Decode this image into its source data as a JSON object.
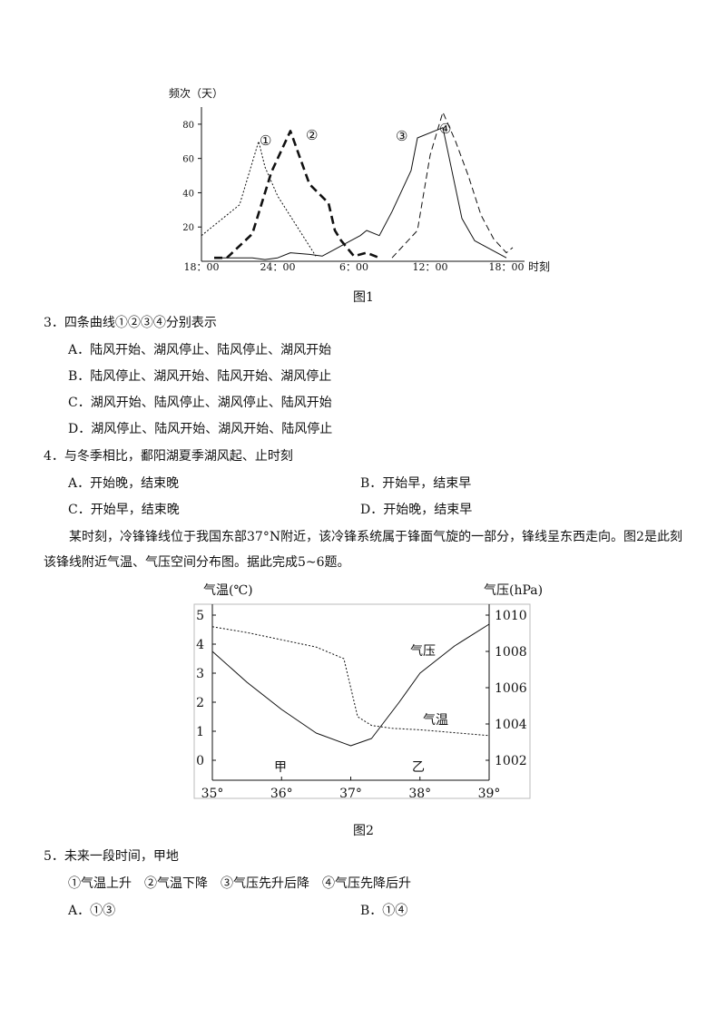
{
  "figure1": {
    "caption": "图1",
    "ylabel": "频次（天）",
    "xlabel": "时刻",
    "yticks": [
      "20",
      "40",
      "60",
      "80"
    ],
    "xticks": [
      "18：00",
      "24：00",
      "6：00",
      "12：00",
      "18：00"
    ],
    "curve_labels": [
      "①",
      "②",
      "③",
      "④"
    ]
  },
  "figure2": {
    "caption": "图2",
    "left_axis_label": "气温(℃)",
    "right_axis_label": "气压(hPa)",
    "left_ticks": [
      "5",
      "4",
      "3",
      "2",
      "1",
      "0"
    ],
    "right_ticks": [
      "1010",
      "1008",
      "1006",
      "1004",
      "1002"
    ],
    "x_ticks": [
      "35°",
      "36°",
      "37°",
      "38°",
      "39°"
    ],
    "series_labels": [
      "气压",
      "气温"
    ],
    "place_labels": [
      "甲",
      "乙"
    ]
  },
  "chart_data": [
    {
      "type": "line",
      "xlabel": "时刻",
      "ylabel": "频次（天）",
      "x_ticks": [
        "18：00",
        "24：00",
        "6：00",
        "12：00",
        "18：00"
      ],
      "ylim": [
        0,
        90
      ],
      "x_unit": "hours since 18:00",
      "series": [
        {
          "name": "①",
          "style": "dotted",
          "x": [
            0,
            3,
            4.5,
            5,
            6,
            9
          ],
          "y": [
            15,
            33,
            70,
            55,
            38,
            3
          ]
        },
        {
          "name": "②",
          "style": "bold-dashed",
          "x": [
            1,
            2,
            4,
            5.5,
            7,
            8.5,
            10,
            10.5,
            11,
            12,
            13,
            14
          ],
          "y": [
            2,
            2,
            16,
            52,
            76,
            45,
            34,
            18,
            12,
            3,
            5,
            2
          ]
        },
        {
          "name": "③",
          "style": "solid",
          "x": [
            1,
            3,
            4,
            5,
            6,
            7,
            8.5,
            9.5,
            10.5,
            11.5,
            12.5,
            13,
            14,
            15,
            16.5,
            17,
            19,
            20.5,
            21.5,
            24
          ],
          "y": [
            2,
            2,
            2,
            1,
            2,
            5,
            4,
            3,
            7,
            11,
            15,
            18,
            15,
            29,
            53,
            72,
            78,
            25,
            12,
            2
          ]
        },
        {
          "name": "④",
          "style": "dashed",
          "x": [
            15,
            17,
            17.5,
            18,
            19,
            20,
            21,
            22,
            23,
            24,
            24.5
          ],
          "y": [
            2,
            18,
            40,
            62,
            87,
            70,
            50,
            27,
            13,
            5,
            8
          ]
        }
      ]
    },
    {
      "type": "line",
      "x_ticks": [
        "35°",
        "36°",
        "37°",
        "38°",
        "39°"
      ],
      "xlim": [
        35,
        39
      ],
      "left_ylim": [
        0,
        5
      ],
      "right_ylim": [
        1002,
        1010
      ],
      "series": [
        {
          "name": "气压",
          "axis": "right",
          "style": "solid",
          "x": [
            35,
            35.5,
            36,
            36.5,
            37,
            37.3,
            37.7,
            38,
            38.5,
            39
          ],
          "y": [
            1008,
            1006.3,
            1004.8,
            1003.5,
            1002.8,
            1003.2,
            1005.2,
            1006.8,
            1008.3,
            1009.5
          ]
        },
        {
          "name": "气温",
          "axis": "left",
          "style": "dotted",
          "x": [
            35,
            35.5,
            36,
            36.5,
            36.9,
            37,
            37.1,
            37.3,
            37.6,
            38,
            38.5,
            39
          ],
          "y": [
            4.6,
            4.4,
            4.15,
            3.9,
            3.5,
            2.5,
            1.5,
            1.2,
            1.1,
            1.05,
            0.95,
            0.85
          ]
        }
      ]
    }
  ],
  "questions": [
    {
      "stem": "3．四条曲线①②③④分别表示",
      "options": [
        "A．陆风开始、湖风停止、陆风停止、湖风开始",
        "B．陆风停止、湖风开始、陆风开始、湖风停止",
        "C．湖风开始、陆风停止、湖风停止、陆风开始",
        "D．湖风停止、陆风开始、湖风开始、陆风停止"
      ]
    },
    {
      "stem": "4．与冬季相比，鄱阳湖夏季湖风起、止时刻",
      "options": [
        "A．开始晚，结束晚",
        "B．开始早，结束早",
        "C．开始早，结束晚",
        "D．开始晚，结束早"
      ]
    }
  ],
  "passage": "某时刻，冷锋锋线位于我国东部37°N附近，该冷锋系统属于锋面气旋的一部分，锋线呈东西走向。图2是此刻该锋线附近气温、气压空间分布图。据此完成5~6题。",
  "q5": {
    "stem": "5．未来一段时间，甲地",
    "items": "①气温上升　②气温下降　③气压先升后降　④气压先降后升",
    "options": [
      "A．①③",
      "B．①④"
    ]
  }
}
